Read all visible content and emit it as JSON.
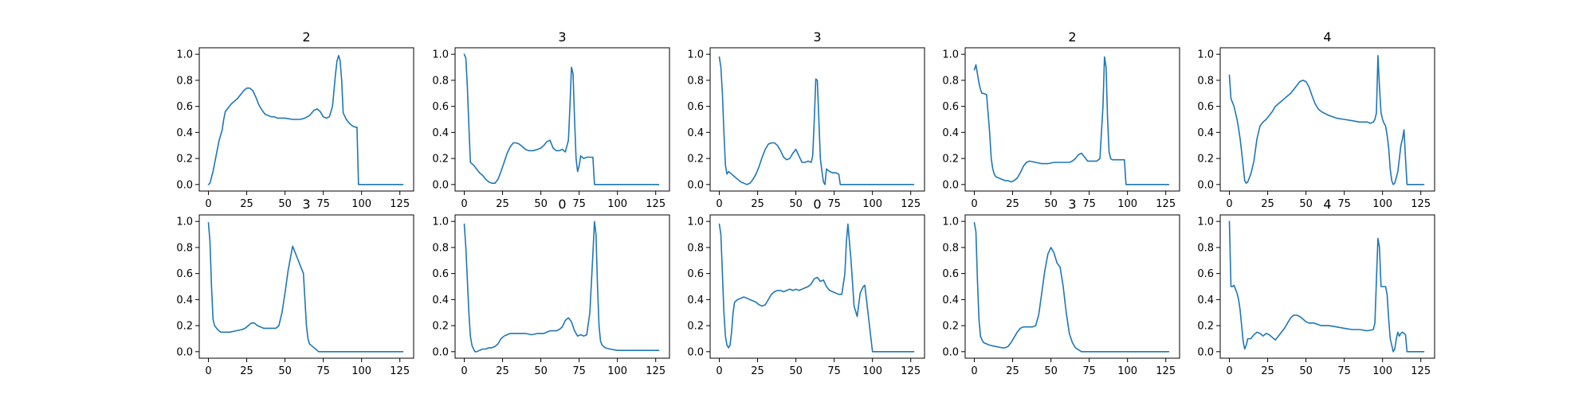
{
  "chart_data": [
    {
      "type": "line",
      "title": "2",
      "xlim": [
        -6,
        134
      ],
      "ylim": [
        -0.05,
        1.05
      ],
      "xticks": [
        "0",
        "25",
        "50",
        "75",
        "100",
        "125"
      ],
      "yticks": [
        "0.0",
        "0.2",
        "0.4",
        "0.6",
        "0.8",
        "1.0"
      ],
      "x": [
        0,
        1,
        3,
        5,
        7,
        9,
        10,
        11,
        13,
        15,
        17,
        19,
        21,
        23,
        25,
        27,
        29,
        31,
        33,
        35,
        37,
        39,
        41,
        43,
        45,
        50,
        55,
        60,
        63,
        66,
        69,
        71,
        73,
        75,
        77,
        79,
        81,
        83,
        84,
        85,
        86,
        87,
        88,
        90,
        92,
        94,
        96,
        97,
        98,
        100,
        110,
        120,
        127
      ],
      "values": [
        0.0,
        0.01,
        0.1,
        0.22,
        0.34,
        0.42,
        0.5,
        0.56,
        0.59,
        0.62,
        0.64,
        0.66,
        0.69,
        0.72,
        0.74,
        0.74,
        0.72,
        0.67,
        0.61,
        0.57,
        0.54,
        0.53,
        0.52,
        0.52,
        0.51,
        0.51,
        0.5,
        0.5,
        0.51,
        0.53,
        0.57,
        0.58,
        0.56,
        0.52,
        0.51,
        0.52,
        0.6,
        0.85,
        0.95,
        0.99,
        0.95,
        0.8,
        0.55,
        0.5,
        0.47,
        0.45,
        0.44,
        0.44,
        0.0,
        0.0,
        0.0,
        0.0,
        0.0
      ]
    },
    {
      "type": "line",
      "title": "3",
      "xlim": [
        -6,
        134
      ],
      "ylim": [
        -0.05,
        1.05
      ],
      "xticks": [
        "0",
        "25",
        "50",
        "75",
        "100",
        "125"
      ],
      "yticks": [
        "0.0",
        "0.2",
        "0.4",
        "0.6",
        "0.8",
        "1.0"
      ],
      "x": [
        0,
        1,
        2,
        3,
        4,
        6,
        8,
        10,
        12,
        14,
        16,
        18,
        20,
        22,
        24,
        26,
        28,
        30,
        32,
        34,
        36,
        38,
        40,
        42,
        45,
        48,
        50,
        52,
        54,
        56,
        58,
        60,
        62,
        64,
        66,
        68,
        69,
        70,
        71,
        72,
        73,
        74,
        75,
        76,
        78,
        80,
        82,
        84,
        85,
        90,
        100,
        110,
        120,
        127
      ],
      "values": [
        1.0,
        0.97,
        0.75,
        0.45,
        0.17,
        0.15,
        0.12,
        0.09,
        0.07,
        0.04,
        0.02,
        0.01,
        0.01,
        0.04,
        0.1,
        0.17,
        0.24,
        0.29,
        0.32,
        0.32,
        0.31,
        0.29,
        0.27,
        0.26,
        0.26,
        0.27,
        0.28,
        0.3,
        0.33,
        0.34,
        0.28,
        0.26,
        0.26,
        0.27,
        0.25,
        0.34,
        0.6,
        0.9,
        0.85,
        0.5,
        0.2,
        0.1,
        0.14,
        0.22,
        0.2,
        0.21,
        0.21,
        0.21,
        0.0,
        0.0,
        0.0,
        0.0,
        0.0,
        0.0
      ]
    },
    {
      "type": "line",
      "title": "3",
      "xlim": [
        -6,
        134
      ],
      "ylim": [
        -0.05,
        1.05
      ],
      "xticks": [
        "0",
        "25",
        "50",
        "75",
        "100",
        "125"
      ],
      "yticks": [
        "0.0",
        "0.2",
        "0.4",
        "0.6",
        "0.8",
        "1.0"
      ],
      "x": [
        0,
        1,
        2,
        3,
        4,
        5,
        6,
        8,
        10,
        12,
        14,
        16,
        18,
        20,
        22,
        24,
        26,
        28,
        30,
        32,
        34,
        36,
        38,
        40,
        42,
        44,
        46,
        48,
        50,
        52,
        54,
        56,
        58,
        60,
        61,
        62,
        63,
        64,
        65,
        66,
        67,
        68,
        69,
        70,
        72,
        74,
        76,
        78,
        79,
        85,
        100,
        110,
        120,
        127
      ],
      "values": [
        0.98,
        0.9,
        0.7,
        0.4,
        0.15,
        0.08,
        0.1,
        0.08,
        0.06,
        0.04,
        0.02,
        0.01,
        0.0,
        0.01,
        0.04,
        0.08,
        0.14,
        0.21,
        0.27,
        0.31,
        0.32,
        0.32,
        0.3,
        0.26,
        0.21,
        0.19,
        0.2,
        0.24,
        0.27,
        0.22,
        0.17,
        0.17,
        0.18,
        0.17,
        0.22,
        0.5,
        0.81,
        0.8,
        0.5,
        0.2,
        0.1,
        0.02,
        0.0,
        0.12,
        0.1,
        0.09,
        0.09,
        0.08,
        0.0,
        0.0,
        0.0,
        0.0,
        0.0,
        0.0
      ]
    },
    {
      "type": "line",
      "title": "2",
      "xlim": [
        -6,
        134
      ],
      "ylim": [
        -0.05,
        1.05
      ],
      "xticks": [
        "0",
        "25",
        "50",
        "75",
        "100",
        "125"
      ],
      "yticks": [
        "0.0",
        "0.2",
        "0.4",
        "0.6",
        "0.8",
        "1.0"
      ],
      "x": [
        0,
        1,
        2,
        3,
        4,
        5,
        6,
        8,
        10,
        11,
        12,
        13,
        14,
        16,
        18,
        20,
        22,
        24,
        26,
        28,
        30,
        32,
        34,
        36,
        40,
        44,
        48,
        52,
        56,
        60,
        62,
        64,
        66,
        68,
        70,
        72,
        74,
        76,
        78,
        80,
        82,
        84,
        85,
        86,
        87,
        88,
        89,
        90,
        94,
        98,
        99,
        100,
        110,
        120,
        127
      ],
      "values": [
        0.88,
        0.92,
        0.85,
        0.78,
        0.73,
        0.7,
        0.7,
        0.69,
        0.4,
        0.2,
        0.12,
        0.08,
        0.06,
        0.05,
        0.04,
        0.03,
        0.03,
        0.02,
        0.03,
        0.05,
        0.09,
        0.14,
        0.17,
        0.18,
        0.17,
        0.16,
        0.16,
        0.17,
        0.17,
        0.17,
        0.17,
        0.18,
        0.2,
        0.23,
        0.24,
        0.21,
        0.18,
        0.18,
        0.18,
        0.18,
        0.2,
        0.6,
        0.98,
        0.9,
        0.5,
        0.25,
        0.2,
        0.19,
        0.19,
        0.19,
        0.0,
        0.0,
        0.0,
        0.0,
        0.0
      ]
    },
    {
      "type": "line",
      "title": "4",
      "xlim": [
        -6,
        134
      ],
      "ylim": [
        -0.05,
        1.05
      ],
      "xticks": [
        "0",
        "25",
        "50",
        "75",
        "100",
        "125"
      ],
      "yticks": [
        "0.0",
        "0.2",
        "0.4",
        "0.6",
        "0.8",
        "1.0"
      ],
      "x": [
        0,
        1,
        2,
        3,
        4,
        5,
        6,
        7,
        8,
        9,
        10,
        11,
        12,
        14,
        16,
        18,
        20,
        22,
        24,
        26,
        28,
        30,
        32,
        34,
        36,
        38,
        40,
        42,
        44,
        46,
        48,
        50,
        52,
        54,
        56,
        58,
        60,
        65,
        70,
        75,
        80,
        85,
        90,
        92,
        94,
        95,
        96,
        97,
        98,
        99,
        100,
        101,
        102,
        103,
        104,
        105,
        106,
        107,
        108,
        110,
        112,
        113,
        114,
        115,
        116,
        120,
        127
      ],
      "values": [
        0.84,
        0.66,
        0.63,
        0.6,
        0.55,
        0.5,
        0.43,
        0.35,
        0.25,
        0.14,
        0.03,
        0.01,
        0.02,
        0.08,
        0.18,
        0.35,
        0.45,
        0.48,
        0.5,
        0.53,
        0.56,
        0.6,
        0.62,
        0.64,
        0.66,
        0.68,
        0.7,
        0.73,
        0.76,
        0.79,
        0.8,
        0.79,
        0.75,
        0.68,
        0.62,
        0.58,
        0.56,
        0.53,
        0.51,
        0.5,
        0.49,
        0.48,
        0.48,
        0.47,
        0.48,
        0.5,
        0.55,
        0.99,
        0.75,
        0.55,
        0.5,
        0.47,
        0.45,
        0.38,
        0.28,
        0.12,
        0.03,
        0.0,
        0.01,
        0.1,
        0.3,
        0.35,
        0.42,
        0.2,
        0.0,
        0.0,
        0.0
      ]
    },
    {
      "type": "line",
      "title": "3",
      "xlim": [
        -6,
        134
      ],
      "ylim": [
        -0.05,
        1.05
      ],
      "xticks": [
        "0",
        "25",
        "50",
        "75",
        "100",
        "125"
      ],
      "yticks": [
        "0.0",
        "0.2",
        "0.4",
        "0.6",
        "0.8",
        "1.0"
      ],
      "x": [
        0,
        1,
        2,
        3,
        4,
        6,
        8,
        10,
        14,
        18,
        22,
        24,
        26,
        28,
        30,
        32,
        34,
        36,
        38,
        40,
        44,
        46,
        48,
        50,
        52,
        54,
        55,
        56,
        58,
        60,
        62,
        63,
        64,
        65,
        66,
        68,
        70,
        72,
        75,
        80,
        90,
        100,
        110,
        120,
        127
      ],
      "values": [
        0.99,
        0.85,
        0.5,
        0.25,
        0.2,
        0.17,
        0.15,
        0.15,
        0.15,
        0.16,
        0.17,
        0.18,
        0.2,
        0.22,
        0.22,
        0.2,
        0.19,
        0.18,
        0.18,
        0.18,
        0.18,
        0.2,
        0.3,
        0.45,
        0.62,
        0.75,
        0.81,
        0.78,
        0.72,
        0.66,
        0.6,
        0.4,
        0.2,
        0.1,
        0.06,
        0.04,
        0.02,
        0.0,
        0.0,
        0.0,
        0.0,
        0.0,
        0.0,
        0.0,
        0.0
      ]
    },
    {
      "type": "line",
      "title": "0",
      "xlim": [
        -6,
        134
      ],
      "ylim": [
        -0.05,
        1.05
      ],
      "xticks": [
        "0",
        "25",
        "50",
        "75",
        "100",
        "125"
      ],
      "yticks": [
        "0.0",
        "0.2",
        "0.4",
        "0.6",
        "0.8",
        "1.0"
      ],
      "x": [
        0,
        1,
        2,
        3,
        4,
        5,
        6,
        7,
        8,
        10,
        12,
        14,
        16,
        18,
        20,
        22,
        24,
        26,
        28,
        30,
        32,
        34,
        36,
        40,
        44,
        48,
        52,
        56,
        60,
        62,
        64,
        66,
        68,
        70,
        72,
        74,
        76,
        78,
        80,
        82,
        84,
        85,
        86,
        87,
        88,
        89,
        90,
        92,
        95,
        100,
        110,
        120,
        127
      ],
      "values": [
        0.98,
        0.8,
        0.55,
        0.3,
        0.12,
        0.05,
        0.02,
        0.0,
        0.0,
        0.01,
        0.02,
        0.02,
        0.03,
        0.03,
        0.04,
        0.06,
        0.1,
        0.12,
        0.13,
        0.14,
        0.14,
        0.14,
        0.14,
        0.14,
        0.13,
        0.14,
        0.14,
        0.16,
        0.16,
        0.17,
        0.19,
        0.24,
        0.26,
        0.23,
        0.16,
        0.12,
        0.13,
        0.12,
        0.13,
        0.3,
        0.75,
        1.0,
        0.9,
        0.5,
        0.2,
        0.08,
        0.05,
        0.03,
        0.02,
        0.01,
        0.01,
        0.01,
        0.01
      ]
    },
    {
      "type": "line",
      "title": "0",
      "xlim": [
        -6,
        134
      ],
      "ylim": [
        -0.05,
        1.05
      ],
      "xticks": [
        "0",
        "25",
        "50",
        "75",
        "100",
        "125"
      ],
      "yticks": [
        "0.0",
        "0.2",
        "0.4",
        "0.6",
        "0.8",
        "1.0"
      ],
      "x": [
        0,
        1,
        2,
        3,
        4,
        5,
        6,
        7,
        8,
        9,
        10,
        12,
        14,
        16,
        18,
        20,
        22,
        24,
        26,
        28,
        30,
        32,
        34,
        36,
        38,
        40,
        42,
        44,
        46,
        48,
        50,
        52,
        54,
        56,
        58,
        60,
        62,
        64,
        66,
        68,
        70,
        72,
        74,
        76,
        78,
        80,
        82,
        83,
        84,
        86,
        88,
        90,
        92,
        94,
        95,
        100,
        110,
        120,
        127
      ],
      "values": [
        0.98,
        0.9,
        0.6,
        0.3,
        0.12,
        0.05,
        0.03,
        0.05,
        0.15,
        0.3,
        0.38,
        0.4,
        0.41,
        0.42,
        0.41,
        0.4,
        0.39,
        0.38,
        0.36,
        0.35,
        0.36,
        0.4,
        0.44,
        0.46,
        0.47,
        0.47,
        0.46,
        0.47,
        0.48,
        0.47,
        0.48,
        0.47,
        0.48,
        0.49,
        0.5,
        0.52,
        0.56,
        0.57,
        0.54,
        0.55,
        0.5,
        0.47,
        0.46,
        0.45,
        0.44,
        0.44,
        0.6,
        0.85,
        0.98,
        0.7,
        0.35,
        0.27,
        0.45,
        0.5,
        0.51,
        0.0,
        0.0,
        0.0,
        0.0
      ]
    },
    {
      "type": "line",
      "title": "3",
      "xlim": [
        -6,
        134
      ],
      "ylim": [
        -0.05,
        1.05
      ],
      "xticks": [
        "0",
        "25",
        "50",
        "75",
        "100",
        "125"
      ],
      "yticks": [
        "0.0",
        "0.2",
        "0.4",
        "0.6",
        "0.8",
        "1.0"
      ],
      "x": [
        0,
        1,
        2,
        3,
        4,
        5,
        6,
        8,
        10,
        14,
        18,
        20,
        22,
        24,
        26,
        28,
        30,
        32,
        34,
        36,
        38,
        40,
        42,
        44,
        46,
        48,
        50,
        52,
        54,
        56,
        58,
        60,
        62,
        64,
        66,
        70,
        75,
        80,
        90,
        100,
        110,
        120,
        127
      ],
      "values": [
        0.99,
        0.92,
        0.55,
        0.25,
        0.12,
        0.09,
        0.07,
        0.06,
        0.05,
        0.04,
        0.03,
        0.03,
        0.04,
        0.07,
        0.11,
        0.15,
        0.18,
        0.19,
        0.19,
        0.19,
        0.19,
        0.2,
        0.28,
        0.45,
        0.62,
        0.75,
        0.8,
        0.76,
        0.68,
        0.65,
        0.5,
        0.3,
        0.14,
        0.07,
        0.03,
        0.0,
        0.0,
        0.0,
        0.0,
        0.0,
        0.0,
        0.0,
        0.0
      ]
    },
    {
      "type": "line",
      "title": "4",
      "xlim": [
        -6,
        134
      ],
      "ylim": [
        -0.05,
        1.05
      ],
      "xticks": [
        "0",
        "25",
        "50",
        "75",
        "100",
        "125"
      ],
      "yticks": [
        "0.0",
        "0.2",
        "0.4",
        "0.6",
        "0.8",
        "1.0"
      ],
      "x": [
        0,
        1,
        2,
        3,
        4,
        5,
        6,
        7,
        8,
        9,
        10,
        11,
        12,
        14,
        16,
        18,
        20,
        22,
        24,
        26,
        28,
        30,
        32,
        34,
        36,
        38,
        40,
        42,
        44,
        46,
        48,
        50,
        52,
        55,
        60,
        65,
        70,
        75,
        80,
        85,
        90,
        94,
        95,
        96,
        97,
        98,
        99,
        100,
        101,
        102,
        103,
        104,
        105,
        106,
        107,
        108,
        109,
        110,
        111,
        112,
        113,
        114,
        115,
        116,
        120,
        127
      ],
      "values": [
        1.0,
        0.5,
        0.5,
        0.51,
        0.48,
        0.45,
        0.4,
        0.32,
        0.2,
        0.08,
        0.02,
        0.05,
        0.1,
        0.1,
        0.13,
        0.15,
        0.14,
        0.12,
        0.14,
        0.13,
        0.11,
        0.09,
        0.12,
        0.15,
        0.18,
        0.22,
        0.26,
        0.28,
        0.28,
        0.27,
        0.25,
        0.23,
        0.22,
        0.22,
        0.2,
        0.2,
        0.19,
        0.18,
        0.17,
        0.17,
        0.16,
        0.17,
        0.22,
        0.55,
        0.87,
        0.8,
        0.5,
        0.5,
        0.5,
        0.5,
        0.44,
        0.25,
        0.1,
        0.05,
        0.0,
        0.02,
        0.1,
        0.15,
        0.12,
        0.14,
        0.15,
        0.14,
        0.13,
        0.0,
        0.0,
        0.0
      ]
    }
  ]
}
